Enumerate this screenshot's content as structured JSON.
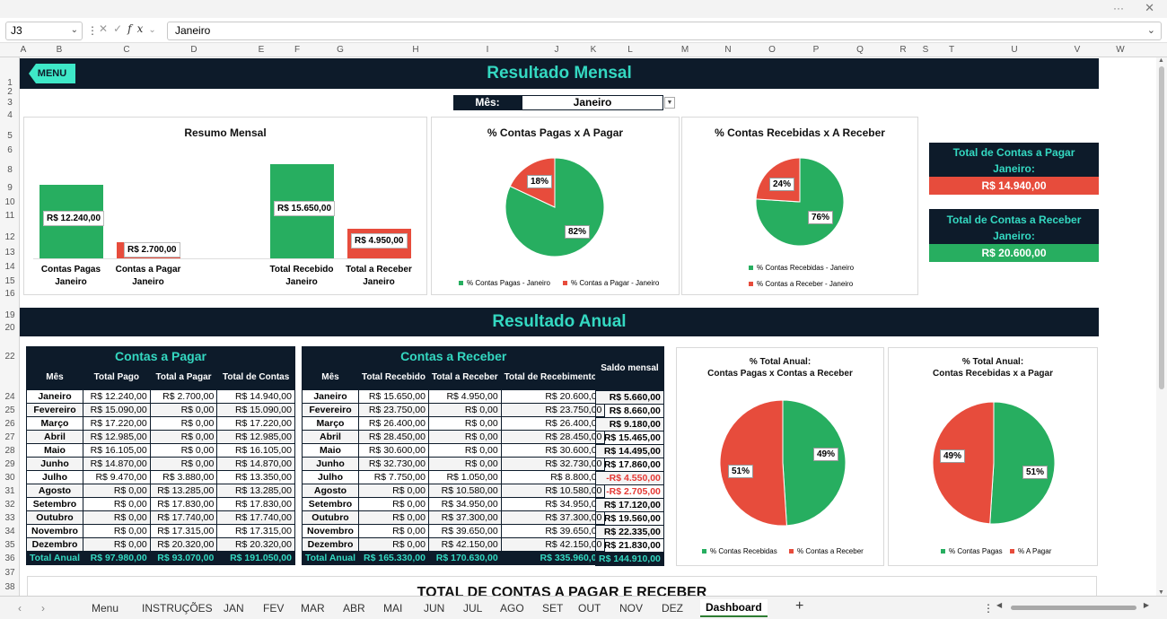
{
  "formula_bar": {
    "cell_ref": "J3",
    "formula": "Janeiro"
  },
  "columns": [
    "A",
    "B",
    "C",
    "D",
    "E",
    "F",
    "G",
    "H",
    "I",
    "J",
    "K",
    "L",
    "M",
    "N",
    "O",
    "P",
    "Q",
    "R",
    "S",
    "T",
    "U",
    "V",
    "W"
  ],
  "rows": [
    "1",
    "2",
    "3",
    "4",
    "5",
    "6",
    "7",
    "8",
    "9",
    "10",
    "11",
    "12",
    "13",
    "14",
    "15",
    "16",
    "17",
    "18",
    "19",
    "20",
    "21",
    "22",
    "23",
    "24",
    "25",
    "26",
    "27",
    "28",
    "29",
    "30",
    "31",
    "32",
    "33",
    "34",
    "35",
    "36",
    "37",
    "38"
  ],
  "menu_label": "MENU",
  "monthly_title": "Resultado Mensal",
  "month_selector": {
    "label": "Mês:",
    "value": "Janeiro"
  },
  "resumo": {
    "title": "Resumo Mensal",
    "chart_data": {
      "type": "bar",
      "categories": [
        "Contas Pagas Janeiro",
        "Contas a Pagar Janeiro",
        "Total Recebido Janeiro",
        "Total a Receber Janeiro"
      ],
      "values": [
        12240,
        2700,
        15650,
        4950
      ],
      "labels": [
        "R$ 12.240,00",
        "R$ 2.700,00",
        "R$ 15.650,00",
        "R$ 4.950,00"
      ],
      "cat_lines": [
        [
          "Contas Pagas",
          "Janeiro"
        ],
        [
          "Contas a Pagar",
          "Janeiro"
        ],
        [
          "Total Recebido",
          "Janeiro"
        ],
        [
          "Total a Receber",
          "Janeiro"
        ]
      ],
      "colors": [
        "#27ae60",
        "#e74c3c",
        "#27ae60",
        "#e74c3c"
      ]
    }
  },
  "pie_pagas": {
    "title": "% Contas Pagas x A Pagar",
    "chart_data": {
      "type": "pie",
      "labels": [
        "% Contas Pagas - Janeiro",
        "% Contas a Pagar - Janeiro"
      ],
      "values": [
        82,
        18
      ],
      "colors": [
        "#27ae60",
        "#e74c3c"
      ]
    },
    "pct_labels": [
      "82%",
      "18%"
    ]
  },
  "pie_recebidas": {
    "title": "% Contas Recebidas x A Receber",
    "chart_data": {
      "type": "pie",
      "labels": [
        "% Contas Recebidas - Janeiro",
        "% Contas a Receber - Janeiro"
      ],
      "values": [
        76,
        24
      ],
      "colors": [
        "#27ae60",
        "#e74c3c"
      ]
    },
    "pct_labels": [
      "76%",
      "24%"
    ]
  },
  "totals": {
    "pagar_title_1": "Total de Contas a Pagar",
    "pagar_title_2": "Janeiro:",
    "pagar_value": "R$ 14.940,00",
    "receber_title_1": "Total de Contas a Receber",
    "receber_title_2": "Janeiro:",
    "receber_value": "R$ 20.600,00"
  },
  "annual_title": "Resultado Anual",
  "pagar_table": {
    "title": "Contas a Pagar",
    "headers": [
      "Mês",
      "Total Pago",
      "Total a Pagar",
      "Total de Contas"
    ],
    "rows": [
      [
        "Janeiro",
        "R$ 12.240,00",
        "R$ 2.700,00",
        "R$ 14.940,00"
      ],
      [
        "Fevereiro",
        "R$ 15.090,00",
        "R$ 0,00",
        "R$ 15.090,00"
      ],
      [
        "Março",
        "R$ 17.220,00",
        "R$ 0,00",
        "R$ 17.220,00"
      ],
      [
        "Abril",
        "R$ 12.985,00",
        "R$ 0,00",
        "R$ 12.985,00"
      ],
      [
        "Maio",
        "R$ 16.105,00",
        "R$ 0,00",
        "R$ 16.105,00"
      ],
      [
        "Junho",
        "R$ 14.870,00",
        "R$ 0,00",
        "R$ 14.870,00"
      ],
      [
        "Julho",
        "R$ 9.470,00",
        "R$ 3.880,00",
        "R$ 13.350,00"
      ],
      [
        "Agosto",
        "R$ 0,00",
        "R$ 13.285,00",
        "R$ 13.285,00"
      ],
      [
        "Setembro",
        "R$ 0,00",
        "R$ 17.830,00",
        "R$ 17.830,00"
      ],
      [
        "Outubro",
        "R$ 0,00",
        "R$ 17.740,00",
        "R$ 17.740,00"
      ],
      [
        "Novembro",
        "R$ 0,00",
        "R$ 17.315,00",
        "R$ 17.315,00"
      ],
      [
        "Dezembro",
        "R$ 0,00",
        "R$ 20.320,00",
        "R$ 20.320,00"
      ]
    ],
    "total": [
      "Total Anual",
      "R$ 97.980,00",
      "R$ 93.070,00",
      "R$ 191.050,00"
    ]
  },
  "receber_table": {
    "title": "Contas a Receber",
    "headers": [
      "Mês",
      "Total Recebido",
      "Total a Receber",
      "Total de Recebimentos"
    ],
    "rows": [
      [
        "Janeiro",
        "R$ 15.650,00",
        "R$ 4.950,00",
        "R$ 20.600,00"
      ],
      [
        "Fevereiro",
        "R$ 23.750,00",
        "R$ 0,00",
        "R$ 23.750,00"
      ],
      [
        "Março",
        "R$ 26.400,00",
        "R$ 0,00",
        "R$ 26.400,00"
      ],
      [
        "Abril",
        "R$ 28.450,00",
        "R$ 0,00",
        "R$ 28.450,00"
      ],
      [
        "Maio",
        "R$ 30.600,00",
        "R$ 0,00",
        "R$ 30.600,00"
      ],
      [
        "Junho",
        "R$ 32.730,00",
        "R$ 0,00",
        "R$ 32.730,00"
      ],
      [
        "Julho",
        "R$ 7.750,00",
        "R$ 1.050,00",
        "R$ 8.800,00"
      ],
      [
        "Agosto",
        "R$ 0,00",
        "R$ 10.580,00",
        "R$ 10.580,00"
      ],
      [
        "Setembro",
        "R$ 0,00",
        "R$ 34.950,00",
        "R$ 34.950,00"
      ],
      [
        "Outubro",
        "R$ 0,00",
        "R$ 37.300,00",
        "R$ 37.300,00"
      ],
      [
        "Novembro",
        "R$ 0,00",
        "R$ 39.650,00",
        "R$ 39.650,00"
      ],
      [
        "Dezembro",
        "R$ 0,00",
        "R$ 42.150,00",
        "R$ 42.150,00"
      ]
    ],
    "total": [
      "Total Anual",
      "R$ 165.330,00",
      "R$ 170.630,00",
      "R$ 335.960,00"
    ]
  },
  "saldo": {
    "header": "Saldo mensal",
    "values": [
      "R$ 5.660,00",
      "R$ 8.660,00",
      "R$ 9.180,00",
      "R$ 15.465,00",
      "R$ 14.495,00",
      "R$ 17.860,00",
      "-R$ 4.550,00",
      "-R$ 2.705,00",
      "R$ 17.120,00",
      "R$ 19.560,00",
      "R$ 22.335,00",
      "R$ 21.830,00"
    ],
    "total": "R$ 144.910,00"
  },
  "pie_anual_1": {
    "title_1": "% Total Anual:",
    "title_2": "Contas Pagas x Contas a Receber",
    "chart_data": {
      "type": "pie",
      "labels": [
        "% Contas Recebidas",
        "% Contas a Receber"
      ],
      "values": [
        49,
        51
      ],
      "colors": [
        "#27ae60",
        "#e74c3c"
      ]
    },
    "pct_labels": [
      "49%",
      "51%"
    ]
  },
  "pie_anual_2": {
    "title_1": "% Total Anual:",
    "title_2": "Contas Recebidas x a Pagar",
    "chart_data": {
      "type": "pie",
      "labels": [
        "% Contas Pagas",
        "% A Pagar"
      ],
      "values": [
        51,
        49
      ],
      "colors": [
        "#27ae60",
        "#e74c3c"
      ]
    },
    "pct_labels": [
      "51%",
      "49%"
    ]
  },
  "bottom_title": "TOTAL DE CONTAS A PAGAR E RECEBER",
  "sheet_tabs": [
    "Menu",
    "INSTRUÇÕES",
    "JAN",
    "FEV",
    "MAR",
    "ABR",
    "MAI",
    "JUN",
    "JUL",
    "AGO",
    "SET",
    "OUT",
    "NOV",
    "DEZ",
    "Dashboard"
  ],
  "active_tab": "Dashboard"
}
